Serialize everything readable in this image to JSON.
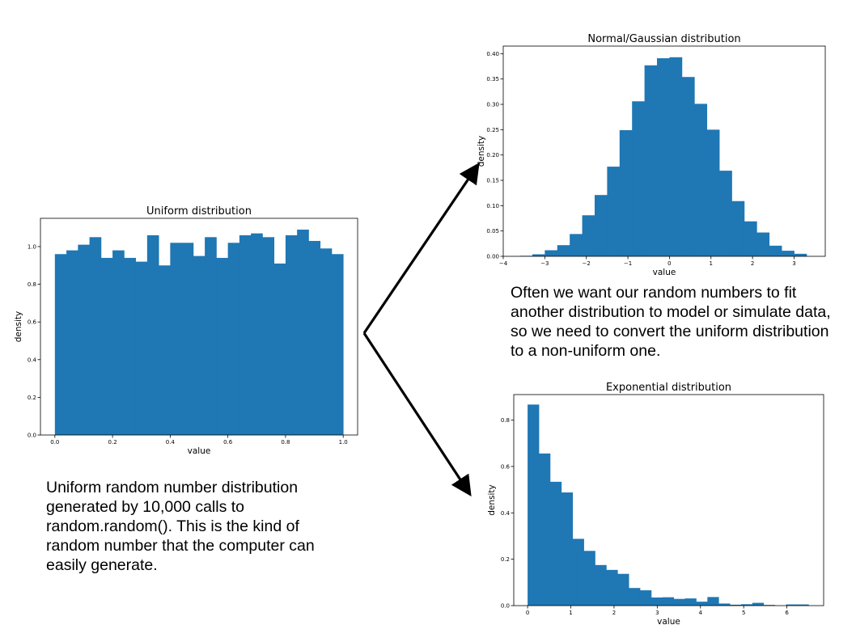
{
  "uniform_caption": "Uniform random number distribution generated by 10,000 calls to random.random(). This is the kind of random number that the computer can easily generate.",
  "transform_caption": "Often we want our random numbers to fit another distribution to model or simulate data, so we need to convert the uniform distribution to a non-uniform one.",
  "colors": {
    "bar": "#1f77b4",
    "arrow": "#000000"
  },
  "chart_data": [
    {
      "id": "uniform",
      "type": "bar",
      "title": "Uniform distribution",
      "xlabel": "value",
      "ylabel": "density",
      "xlim": [
        -0.05,
        1.05
      ],
      "ylim": [
        0,
        1.15
      ],
      "xticks": [
        0.0,
        0.2,
        0.4,
        0.6,
        0.8,
        1.0
      ],
      "xtick_labels": [
        "0.0",
        "0.2",
        "0.4",
        "0.6",
        "0.8",
        "1.0"
      ],
      "yticks": [
        0.0,
        0.2,
        0.4,
        0.6,
        0.8,
        1.0
      ],
      "ytick_labels": [
        "0.0",
        "0.2",
        "0.4",
        "0.6",
        "0.8",
        "1.0"
      ],
      "bin_edges": [
        0.0,
        0.04,
        0.08,
        0.12,
        0.16,
        0.2,
        0.24,
        0.28,
        0.32,
        0.36,
        0.4,
        0.44,
        0.48,
        0.52,
        0.56,
        0.6,
        0.64,
        0.68,
        0.72,
        0.76,
        0.8,
        0.84,
        0.88,
        0.92,
        0.96,
        1.0
      ],
      "values": [
        0.96,
        0.98,
        1.01,
        1.05,
        0.94,
        0.98,
        0.94,
        0.92,
        1.06,
        0.9,
        1.02,
        1.02,
        0.95,
        1.05,
        0.94,
        1.02,
        1.06,
        1.07,
        1.05,
        0.91,
        1.06,
        1.09,
        1.03,
        0.99,
        0.96
      ]
    },
    {
      "id": "normal",
      "type": "bar",
      "title": "Normal/Gaussian distribution",
      "xlabel": "value",
      "ylabel": "density",
      "xlim": [
        -4.0,
        3.75
      ],
      "ylim": [
        0,
        0.415
      ],
      "xticks": [
        -4,
        -3,
        -2,
        -1,
        0,
        1,
        2,
        3
      ],
      "xtick_labels": [
        "−4",
        "−3",
        "−2",
        "−1",
        "0",
        "1",
        "2",
        "3"
      ],
      "yticks": [
        0.0,
        0.05,
        0.1,
        0.15,
        0.2,
        0.25,
        0.3,
        0.35,
        0.4
      ],
      "ytick_labels": [
        "0.00",
        "0.05",
        "0.10",
        "0.15",
        "0.20",
        "0.25",
        "0.30",
        "0.35",
        "0.40"
      ],
      "bin_edges": [
        -3.6,
        -3.3,
        -3.0,
        -2.7,
        -2.4,
        -2.1,
        -1.8,
        -1.5,
        -1.2,
        -0.9,
        -0.6,
        -0.3,
        0.0,
        0.3,
        0.6,
        0.9,
        1.2,
        1.5,
        1.8,
        2.1,
        2.4,
        2.7,
        3.0,
        3.3
      ],
      "values": [
        0.001,
        0.004,
        0.012,
        0.022,
        0.044,
        0.081,
        0.121,
        0.177,
        0.249,
        0.306,
        0.377,
        0.391,
        0.393,
        0.354,
        0.301,
        0.25,
        0.169,
        0.109,
        0.069,
        0.047,
        0.021,
        0.011,
        0.005
      ]
    },
    {
      "id": "exponential",
      "type": "bar",
      "title": "Exponential distribution",
      "xlabel": "value",
      "ylabel": "density",
      "xlim": [
        -0.32,
        6.85
      ],
      "ylim": [
        0,
        0.91
      ],
      "xticks": [
        0,
        1,
        2,
        3,
        4,
        5,
        6
      ],
      "xtick_labels": [
        "0",
        "1",
        "2",
        "3",
        "4",
        "5",
        "6"
      ],
      "yticks": [
        0.0,
        0.2,
        0.4,
        0.6,
        0.8
      ],
      "ytick_labels": [
        "0.0",
        "0.2",
        "0.4",
        "0.6",
        "0.8"
      ],
      "bin_edges": [
        0.0,
        0.26,
        0.52,
        0.78,
        1.04,
        1.3,
        1.56,
        1.82,
        2.08,
        2.34,
        2.6,
        2.86,
        3.12,
        3.38,
        3.64,
        3.9,
        4.16,
        4.42,
        4.68,
        4.94,
        5.2,
        5.46,
        5.72,
        5.98,
        6.24,
        6.5
      ],
      "values": [
        0.867,
        0.656,
        0.534,
        0.488,
        0.288,
        0.236,
        0.175,
        0.154,
        0.137,
        0.076,
        0.066,
        0.035,
        0.036,
        0.029,
        0.031,
        0.017,
        0.037,
        0.009,
        0.004,
        0.006,
        0.012,
        0.003,
        0.0,
        0.005,
        0.005
      ]
    }
  ]
}
